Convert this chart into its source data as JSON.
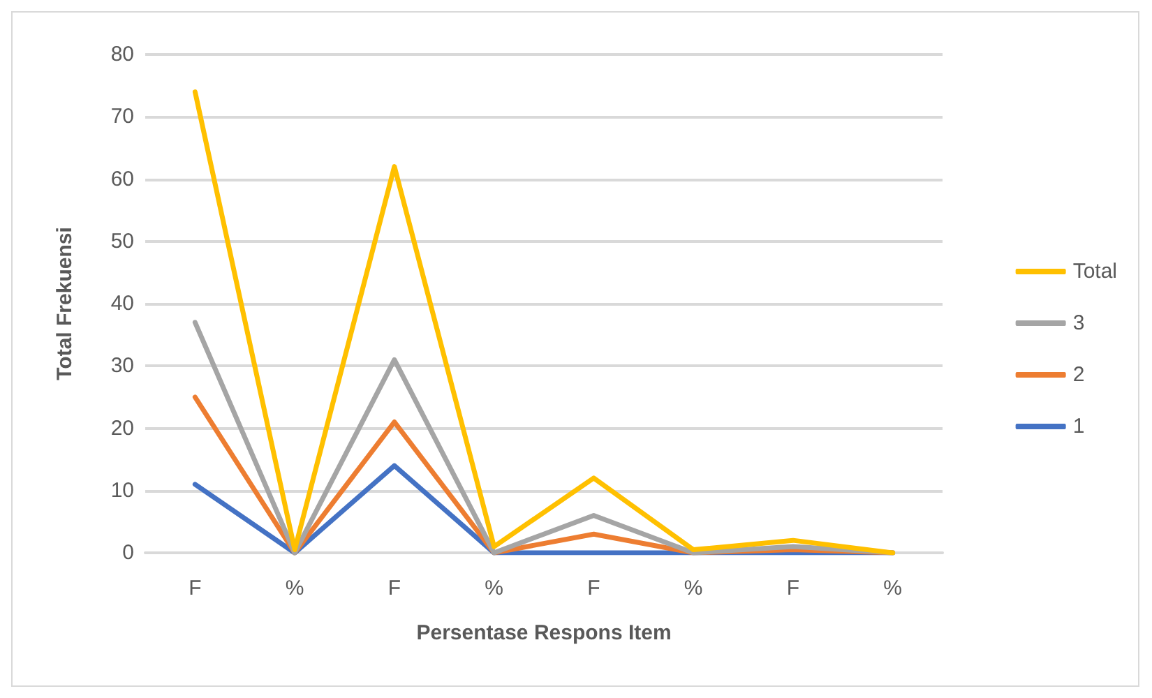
{
  "chart_data": {
    "type": "line",
    "xlabel": "Persentase Respons Item",
    "ylabel": "Total Frekuensi",
    "categories": [
      "F",
      "%",
      "F",
      "%",
      "F",
      "%",
      "F",
      "%"
    ],
    "series": [
      {
        "name": "1",
        "color": "#4472c4",
        "values": [
          11,
          0,
          14,
          0,
          0,
          0,
          0,
          0
        ]
      },
      {
        "name": "2",
        "color": "#ed7d31",
        "values": [
          25,
          0,
          21,
          0,
          3,
          0,
          0.5,
          0
        ]
      },
      {
        "name": "3",
        "color": "#a5a5a5",
        "values": [
          37,
          0,
          31,
          0,
          6,
          0,
          1,
          0
        ]
      },
      {
        "name": "Total",
        "color": "#ffc000",
        "values": [
          74,
          0.5,
          62,
          1,
          12,
          0.5,
          2,
          0
        ]
      }
    ],
    "ylim": [
      0,
      80
    ],
    "yticks": [
      0,
      10,
      20,
      30,
      40,
      50,
      60,
      70,
      80
    ],
    "grid": "y",
    "legend": "right",
    "marker": "none",
    "line_style": "solid"
  }
}
